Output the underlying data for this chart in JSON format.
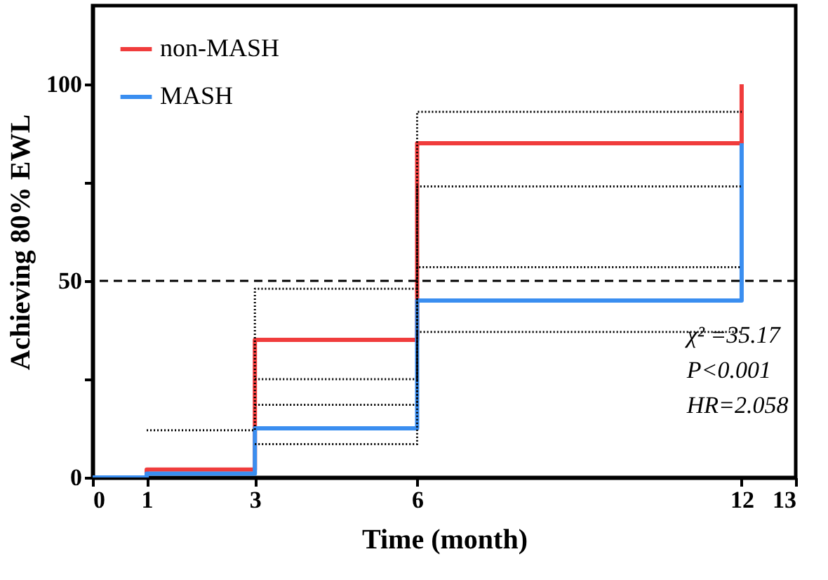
{
  "chart_data": {
    "type": "step",
    "xlabel": "Time (month)",
    "ylabel": "Achieving 80% EWL",
    "xlim": [
      0,
      13
    ],
    "xticks": [
      0,
      1,
      3,
      6,
      12,
      13
    ],
    "ylim": [
      0,
      120
    ],
    "yticks": [
      0,
      {
        "value": 25,
        "label": null
      },
      50,
      {
        "value": 75,
        "label": null
      },
      100
    ],
    "legend": "top left",
    "grid": false,
    "ref_lines": [
      {
        "axis": "y",
        "value": 50,
        "label": null,
        "color": "#000000",
        "line_style": "dashed"
      }
    ],
    "annotations": [
      "χ² =35.17",
      "P<0.001",
      "HR=2.058"
    ],
    "series": [
      {
        "color": "#000000",
        "line_style": "dotted",
        "x": [
          1,
          3,
          6,
          12
        ],
        "values": [
          12,
          48,
          93,
          93
        ]
      },
      {
        "color": "#000000",
        "line_style": "dotted",
        "x": [
          3,
          6,
          12
        ],
        "values": [
          25,
          74,
          74
        ]
      },
      {
        "color": "#000000",
        "line_style": "dotted",
        "x": [
          3,
          6,
          12
        ],
        "values": [
          18.5,
          53.5,
          53.5
        ]
      },
      {
        "color": "#000000",
        "line_style": "dotted",
        "x": [
          3,
          6,
          12
        ],
        "values": [
          8.5,
          37,
          37
        ]
      },
      {
        "name": "non-MASH",
        "color": "#f03c3c",
        "line_style": "solid",
        "x": [
          0,
          1,
          3,
          6,
          12
        ],
        "values": [
          0,
          2,
          35,
          85,
          100
        ]
      },
      {
        "name": "MASH",
        "color": "#3a8ef0",
        "line_style": "solid",
        "x": [
          0,
          1,
          3,
          6,
          12
        ],
        "values": [
          0,
          1,
          12.5,
          45,
          85
        ]
      }
    ]
  }
}
